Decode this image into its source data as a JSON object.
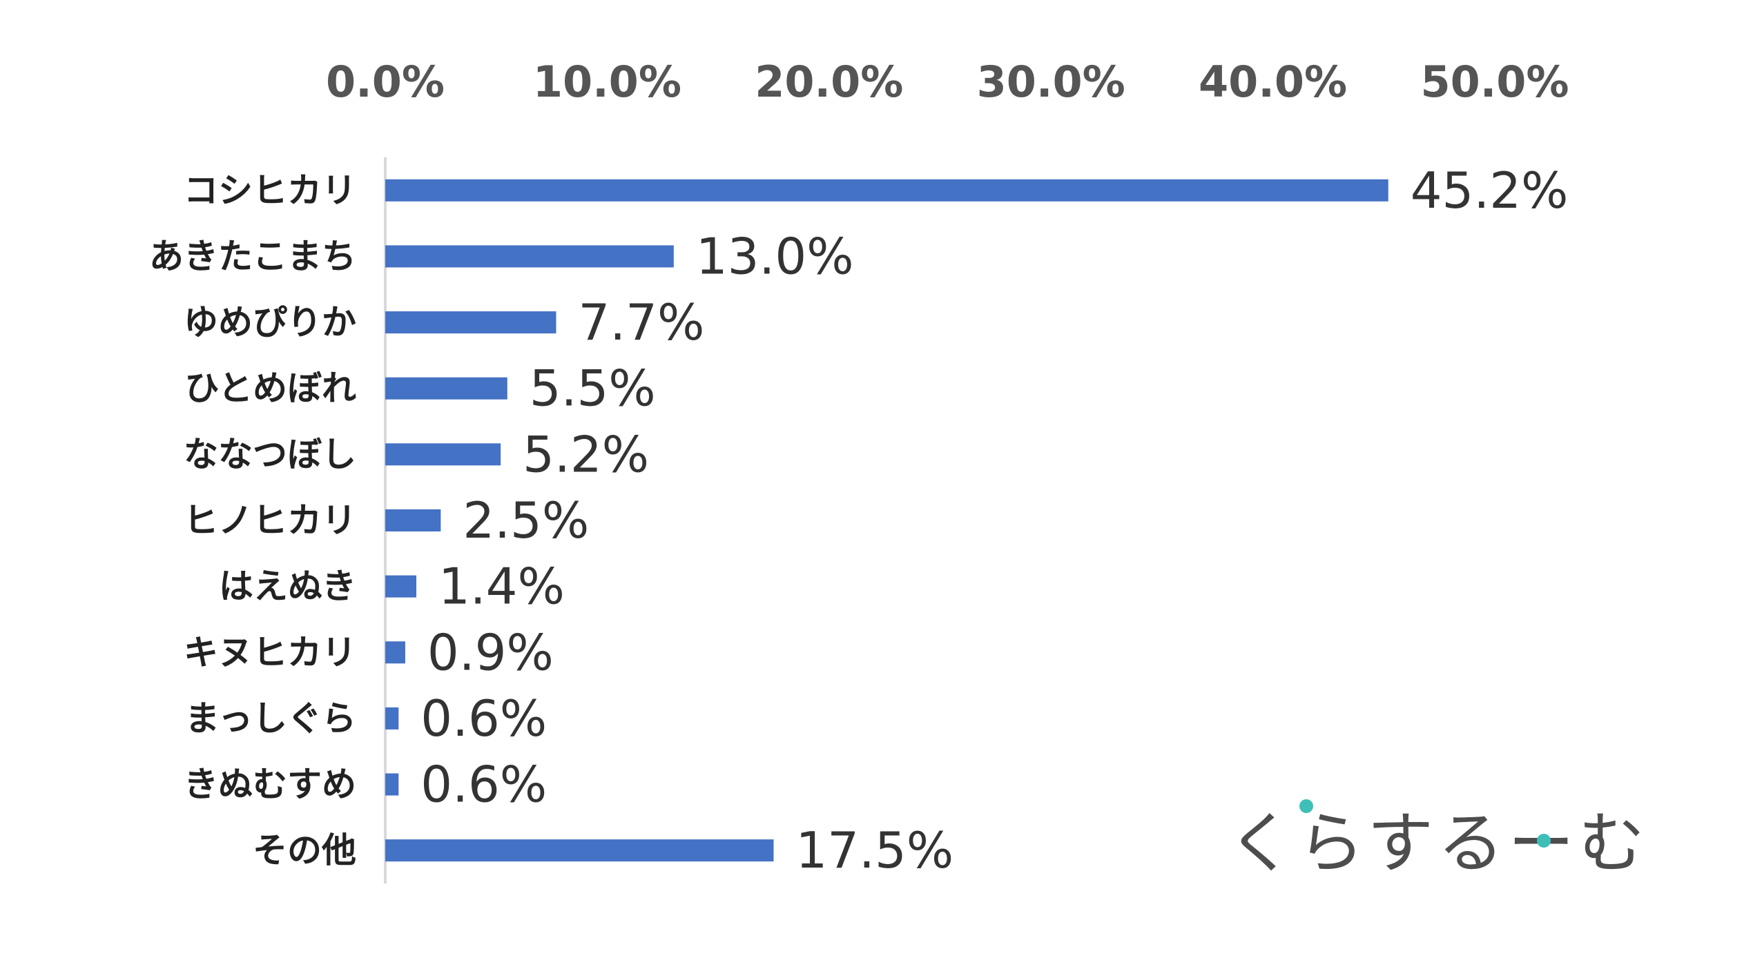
{
  "chart_data": {
    "type": "bar",
    "orientation": "horizontal",
    "categories": [
      "コシヒカリ",
      "あきたこまち",
      "ゆめぴりか",
      "ひとめぼれ",
      "ななつぼし",
      "ヒノヒカリ",
      "はえぬき",
      "キヌヒカリ",
      "まっしぐら",
      "きぬむすめ",
      "その他"
    ],
    "values": [
      45.2,
      13.0,
      7.7,
      5.5,
      5.2,
      2.5,
      1.4,
      0.9,
      0.6,
      0.6,
      17.5
    ],
    "value_labels": [
      "45.2%",
      "13.0%",
      "7.7%",
      "5.5%",
      "5.2%",
      "2.5%",
      "1.4%",
      "0.9%",
      "0.6%",
      "0.6%",
      "17.5%"
    ],
    "xaxis": {
      "position": "top",
      "ticks": [
        0,
        10,
        20,
        30,
        40,
        50
      ],
      "tick_labels": [
        "0.0%",
        "10.0%",
        "20.0%",
        "30.0%",
        "40.0%",
        "50.0%"
      ]
    },
    "xlim": [
      0,
      50
    ],
    "title": "",
    "xlabel": "",
    "ylabel": "",
    "grid": false,
    "legend": "none",
    "bar_color": "#4472C4",
    "axis_color": "#D9D9D9"
  },
  "logo": {
    "text": "くらするーむ",
    "dot_color": "#3DBFB8",
    "text_color": "#4D4D4D"
  }
}
